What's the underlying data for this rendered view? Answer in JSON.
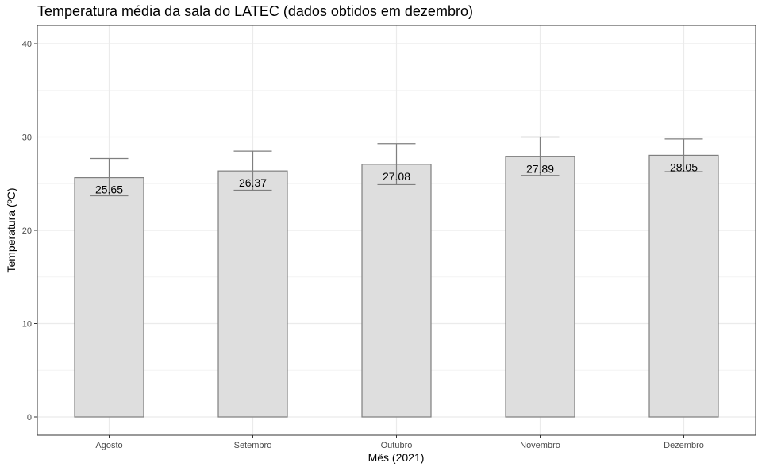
{
  "chart_data": {
    "type": "bar",
    "title": "Temperatura média da sala do LATEC (dados obtidos em dezembro)",
    "xlabel": "Mês (2021)",
    "ylabel": "Temperatura (ºC)",
    "categories": [
      "Agosto",
      "Setembro",
      "Outubro",
      "Novembro",
      "Dezembro"
    ],
    "values": [
      25.65,
      26.37,
      27.08,
      27.89,
      28.05
    ],
    "value_labels": [
      "25.65",
      "26.37",
      "27.08",
      "27.89",
      "28.05"
    ],
    "error_low": [
      23.7,
      24.3,
      24.9,
      25.9,
      26.3
    ],
    "error_high": [
      27.7,
      28.5,
      29.3,
      30.0,
      29.8
    ],
    "ylim": [
      -2,
      42
    ],
    "yticks": [
      0,
      10,
      20,
      30,
      40
    ],
    "grid": true,
    "bar_fill": "#dedede",
    "bar_stroke": "#7f7f7f",
    "error_color": "#7f7f7f"
  }
}
